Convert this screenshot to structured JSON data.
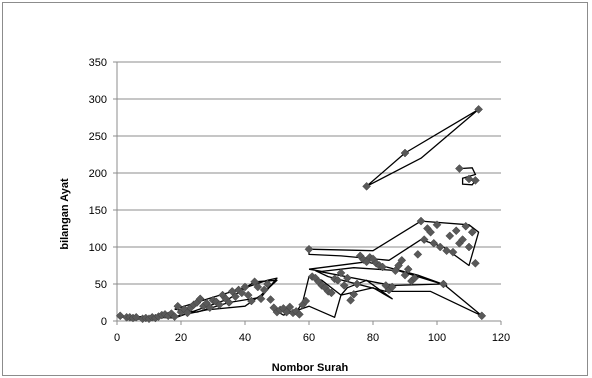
{
  "chart_data": {
    "type": "scatter",
    "title": "",
    "xlabel": "Nombor Surah",
    "ylabel": "bilangan Ayat",
    "xlim": [
      0,
      120
    ],
    "ylim": [
      0,
      350
    ],
    "x_ticks": [
      0,
      20,
      40,
      60,
      80,
      100,
      120
    ],
    "y_ticks": [
      0,
      50,
      100,
      150,
      200,
      250,
      300,
      350
    ],
    "grid": "horizontal",
    "legend": "none",
    "marker": "diamond",
    "marker_color": "#595959",
    "points": [
      [
        1,
        7
      ],
      [
        3,
        5
      ],
      [
        4,
        5
      ],
      [
        5,
        4
      ],
      [
        6,
        5
      ],
      [
        8,
        3
      ],
      [
        9,
        4
      ],
      [
        10,
        3
      ],
      [
        11,
        5
      ],
      [
        12,
        4
      ],
      [
        13,
        6
      ],
      [
        14,
        8
      ],
      [
        15,
        9
      ],
      [
        16,
        7
      ],
      [
        17,
        10
      ],
      [
        18,
        6
      ],
      [
        19,
        20
      ],
      [
        20,
        12
      ],
      [
        21,
        16
      ],
      [
        22,
        11
      ],
      [
        23,
        18
      ],
      [
        24,
        22
      ],
      [
        25,
        25
      ],
      [
        26,
        30
      ],
      [
        27,
        20
      ],
      [
        28,
        24
      ],
      [
        29,
        18
      ],
      [
        30,
        28
      ],
      [
        31,
        26
      ],
      [
        32,
        22
      ],
      [
        33,
        35
      ],
      [
        34,
        30
      ],
      [
        35,
        25
      ],
      [
        36,
        40
      ],
      [
        37,
        33
      ],
      [
        38,
        42
      ],
      [
        39,
        38
      ],
      [
        40,
        46
      ],
      [
        41,
        35
      ],
      [
        42,
        27
      ],
      [
        43,
        53
      ],
      [
        44,
        46
      ],
      [
        45,
        30
      ],
      [
        46,
        42
      ],
      [
        47,
        50
      ],
      [
        48,
        29
      ],
      [
        49,
        18
      ],
      [
        50,
        12
      ],
      [
        51,
        15
      ],
      [
        52,
        17
      ],
      [
        53,
        12
      ],
      [
        54,
        19
      ],
      [
        55,
        11
      ],
      [
        56,
        13
      ],
      [
        57,
        9
      ],
      [
        58,
        22
      ],
      [
        59,
        27
      ],
      [
        60,
        97
      ],
      [
        61,
        60
      ],
      [
        62,
        58
      ],
      [
        63,
        53
      ],
      [
        64,
        48
      ],
      [
        65,
        45
      ],
      [
        66,
        40
      ],
      [
        67,
        38
      ],
      [
        68,
        57
      ],
      [
        69,
        55
      ],
      [
        70,
        65
      ],
      [
        71,
        48
      ],
      [
        72,
        58
      ],
      [
        73,
        28
      ],
      [
        74,
        36
      ],
      [
        75,
        50
      ],
      [
        76,
        88
      ],
      [
        77,
        83
      ],
      [
        78,
        80
      ],
      [
        79,
        86
      ],
      [
        80,
        84
      ],
      [
        81,
        78
      ],
      [
        82,
        75
      ],
      [
        83,
        73
      ],
      [
        84,
        48
      ],
      [
        85,
        42
      ],
      [
        86,
        46
      ],
      [
        87,
        68
      ],
      [
        88,
        75
      ],
      [
        89,
        82
      ],
      [
        90,
        62
      ],
      [
        91,
        70
      ],
      [
        92,
        54
      ],
      [
        93,
        58
      ],
      [
        94,
        90
      ],
      [
        95,
        135
      ],
      [
        96,
        110
      ],
      [
        97,
        125
      ],
      [
        98,
        120
      ],
      [
        99,
        105
      ],
      [
        100,
        130
      ],
      [
        101,
        100
      ],
      [
        102,
        50
      ],
      [
        103,
        95
      ],
      [
        104,
        115
      ],
      [
        105,
        93
      ],
      [
        106,
        122
      ],
      [
        107,
        105
      ],
      [
        108,
        110
      ],
      [
        109,
        128
      ],
      [
        110,
        100
      ],
      [
        111,
        120
      ],
      [
        112,
        78
      ],
      [
        114,
        7
      ],
      [
        78,
        182
      ],
      [
        90,
        227
      ],
      [
        113,
        286
      ],
      [
        107,
        206
      ],
      [
        110,
        192
      ],
      [
        112,
        190
      ]
    ],
    "outline_color": "#000000"
  }
}
